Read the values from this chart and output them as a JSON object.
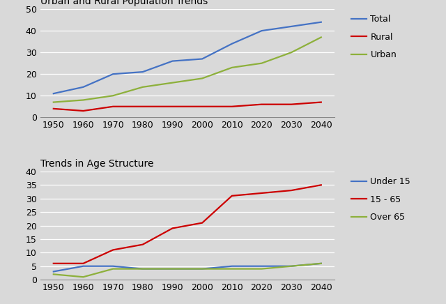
{
  "years": [
    1950,
    1960,
    1970,
    1980,
    1990,
    2000,
    2010,
    2020,
    2030,
    2040
  ],
  "chart1_title": "Urban and Rural Population Trends",
  "total": [
    11,
    14,
    20,
    21,
    26,
    27,
    34,
    40,
    42,
    44
  ],
  "rural": [
    4,
    3,
    5,
    5,
    5,
    5,
    5,
    6,
    6,
    7
  ],
  "urban": [
    7,
    8,
    10,
    14,
    16,
    18,
    23,
    25,
    30,
    37
  ],
  "chart1_ylim": [
    0,
    50
  ],
  "chart1_yticks": [
    0,
    10,
    20,
    30,
    40,
    50
  ],
  "total_color": "#4472C4",
  "rural_color": "#CC0000",
  "urban_color": "#8DB03B",
  "chart2_title": "Trends in Age Structure",
  "under15": [
    3,
    5,
    5,
    4,
    4,
    4,
    5,
    5,
    5,
    6
  ],
  "age1565": [
    6,
    6,
    11,
    13,
    19,
    21,
    31,
    32,
    33,
    35
  ],
  "over65": [
    2,
    1,
    4,
    4,
    4,
    4,
    4,
    4,
    5,
    6
  ],
  "chart2_ylim": [
    0,
    40
  ],
  "chart2_yticks": [
    0,
    5,
    10,
    15,
    20,
    25,
    30,
    35,
    40
  ],
  "under15_color": "#4472C4",
  "age1565_color": "#CC0000",
  "over65_color": "#8DB03B",
  "legend1_labels": [
    "Total",
    "Rural",
    "Urban"
  ],
  "legend2_labels": [
    "Under 15",
    "15 - 65",
    "Over 65"
  ],
  "background_color": "#D9D9D9",
  "plot_bg_color": "#D9D9D9",
  "grid_color": "#FFFFFF",
  "font_size": 9,
  "title_font_size": 10
}
